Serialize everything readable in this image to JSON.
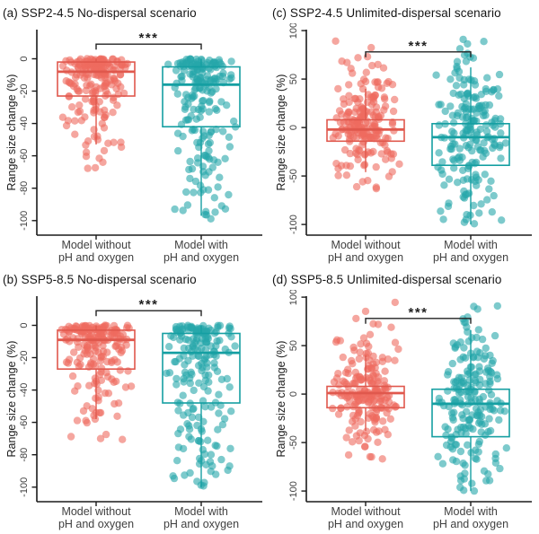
{
  "chart_data": [
    {
      "id": "a",
      "type": "boxplot-jitter",
      "title": "(a) SSP2-4.5 No-dispersal scenario",
      "ylabel": "Range size change (%)",
      "ydomain": [
        18,
        -109
      ],
      "yticks": [
        0,
        -20,
        -40,
        -60,
        -80,
        -100
      ],
      "legend": "none",
      "grid": "off",
      "significance": {
        "label": "***",
        "bracket_y": 9
      },
      "groups": [
        {
          "label_lines": [
            "Model without",
            "pH and oxygen"
          ],
          "point_color": "#ee6a5f",
          "box_color": "#e0584d",
          "box": {
            "q3": -2,
            "median": -8,
            "q1": -23,
            "whisker_high": 0,
            "whisker_low": -53
          },
          "n_points": 199,
          "value_bands": [
            [
              0,
              -4,
              58
            ],
            [
              -4,
              -10,
              44
            ],
            [
              -10,
              -18,
              30
            ],
            [
              -18,
              -28,
              26
            ],
            [
              -28,
              -40,
              20
            ],
            [
              -40,
              -53,
              12
            ],
            [
              -53,
              -62,
              6
            ],
            [
              -62,
              -68,
              3
            ]
          ]
        },
        {
          "label_lines": [
            "Model with",
            "pH and oxygen"
          ],
          "point_color": "#26a7aa",
          "box_color": "#159fa2",
          "box": {
            "q3": -5,
            "median": -16,
            "q1": -42,
            "whisker_high": 0,
            "whisker_low": -97
          },
          "n_points": 203,
          "value_bands": [
            [
              0,
              -5,
              48
            ],
            [
              -5,
              -14,
              38
            ],
            [
              -14,
              -25,
              28
            ],
            [
              -25,
              -38,
              24
            ],
            [
              -38,
              -52,
              20
            ],
            [
              -52,
              -65,
              16
            ],
            [
              -65,
              -80,
              12
            ],
            [
              -80,
              -92,
              9
            ],
            [
              -92,
              -100,
              8
            ]
          ]
        }
      ]
    },
    {
      "id": "c",
      "type": "boxplot-jitter",
      "title": "(c) SSP2-4.5 Unlimited-dispersal scenario",
      "ylabel": "Range size change (%)",
      "ydomain": [
        101,
        -111
      ],
      "yticks": [
        100,
        50,
        0,
        -50,
        -100
      ],
      "legend": "none",
      "grid": "off",
      "significance": {
        "label": "***",
        "bracket_y": 78
      },
      "groups": [
        {
          "label_lines": [
            "Model without",
            "pH and oxygen"
          ],
          "point_color": "#ee6a5f",
          "box_color": "#e0584d",
          "box": {
            "q3": 8,
            "median": -2,
            "q1": -14,
            "whisker_high": 40,
            "whisker_low": -46
          },
          "n_points": 200,
          "value_bands": [
            [
              93,
              70,
              4
            ],
            [
              70,
              50,
              8
            ],
            [
              50,
              35,
              14
            ],
            [
              35,
              20,
              24
            ],
            [
              20,
              8,
              32
            ],
            [
              8,
              -4,
              44
            ],
            [
              -4,
              -15,
              32
            ],
            [
              -15,
              -28,
              20
            ],
            [
              -28,
              -42,
              12
            ],
            [
              -42,
              -55,
              6
            ],
            [
              -55,
              -68,
              4
            ]
          ]
        },
        {
          "label_lines": [
            "Model with",
            "pH and oxygen"
          ],
          "point_color": "#26a7aa",
          "box_color": "#159fa2",
          "box": {
            "q3": 4,
            "median": -10,
            "q1": -39,
            "whisker_high": 62,
            "whisker_low": -100
          },
          "n_points": 200,
          "value_bands": [
            [
              97,
              75,
              5
            ],
            [
              75,
              55,
              9
            ],
            [
              55,
              38,
              16
            ],
            [
              38,
              22,
              22
            ],
            [
              22,
              8,
              26
            ],
            [
              8,
              -8,
              32
            ],
            [
              -8,
              -22,
              26
            ],
            [
              -22,
              -38,
              20
            ],
            [
              -38,
              -55,
              16
            ],
            [
              -55,
              -72,
              12
            ],
            [
              -72,
              -88,
              8
            ],
            [
              -88,
              -100,
              8
            ]
          ]
        }
      ]
    },
    {
      "id": "b",
      "type": "boxplot-jitter",
      "title": "(b) SSP5-8.5 No-dispersal scenario",
      "ylabel": "Range size change (%)",
      "ydomain": [
        18,
        -109
      ],
      "yticks": [
        0,
        -20,
        -40,
        -60,
        -80,
        -100
      ],
      "legend": "none",
      "grid": "off",
      "significance": {
        "label": "***",
        "bracket_y": 9
      },
      "groups": [
        {
          "label_lines": [
            "Model without",
            "pH and oxygen"
          ],
          "point_color": "#ee6a5f",
          "box_color": "#e0584d",
          "box": {
            "q3": -3,
            "median": -9,
            "q1": -27,
            "whisker_high": 0,
            "whisker_low": -58
          },
          "n_points": 196,
          "value_bands": [
            [
              0,
              -4,
              56
            ],
            [
              -4,
              -10,
              44
            ],
            [
              -10,
              -20,
              32
            ],
            [
              -20,
              -30,
              24
            ],
            [
              -30,
              -42,
              18
            ],
            [
              -42,
              -55,
              12
            ],
            [
              -55,
              -65,
              6
            ],
            [
              -65,
              -71,
              4
            ]
          ]
        },
        {
          "label_lines": [
            "Model with",
            "pH and oxygen"
          ],
          "point_color": "#26a7aa",
          "box_color": "#159fa2",
          "box": {
            "q3": -5,
            "median": -17,
            "q1": -48,
            "whisker_high": 0,
            "whisker_low": -100
          },
          "n_points": 200,
          "value_bands": [
            [
              0,
              -5,
              46
            ],
            [
              -5,
              -15,
              36
            ],
            [
              -15,
              -28,
              28
            ],
            [
              -28,
              -42,
              25
            ],
            [
              -42,
              -58,
              20
            ],
            [
              -58,
              -72,
              17
            ],
            [
              -72,
              -86,
              14
            ],
            [
              -86,
              -100,
              14
            ]
          ]
        }
      ]
    },
    {
      "id": "d",
      "type": "boxplot-jitter",
      "title": "(d) SSP5-8.5 Unlimited-dispersal scenario",
      "ylabel": "Range size change (%)",
      "ydomain": [
        101,
        -111
      ],
      "yticks": [
        100,
        50,
        0,
        -50,
        -100
      ],
      "legend": "none",
      "grid": "off",
      "significance": {
        "label": "***",
        "bracket_y": 78
      },
      "groups": [
        {
          "label_lines": [
            "Model without",
            "pH and oxygen"
          ],
          "point_color": "#ee6a5f",
          "box_color": "#e0584d",
          "box": {
            "q3": 8,
            "median": 1,
            "q1": -14,
            "whisker_high": 40,
            "whisker_low": -38
          },
          "n_points": 200,
          "value_bands": [
            [
              98,
              75,
              3
            ],
            [
              75,
              55,
              7
            ],
            [
              55,
              38,
              12
            ],
            [
              38,
              22,
              22
            ],
            [
              22,
              8,
              32
            ],
            [
              8,
              -4,
              46
            ],
            [
              -4,
              -16,
              34
            ],
            [
              -16,
              -30,
              22
            ],
            [
              -30,
              -45,
              12
            ],
            [
              -45,
              -58,
              6
            ],
            [
              -58,
              -68,
              4
            ]
          ]
        },
        {
          "label_lines": [
            "Model with",
            "pH and oxygen"
          ],
          "point_color": "#26a7aa",
          "box_color": "#159fa2",
          "box": {
            "q3": 5,
            "median": -10,
            "q1": -44,
            "whisker_high": 66,
            "whisker_low": -100
          },
          "n_points": 200,
          "value_bands": [
            [
              98,
              75,
              5
            ],
            [
              75,
              55,
              9
            ],
            [
              55,
              38,
              15
            ],
            [
              38,
              20,
              22
            ],
            [
              20,
              5,
              26
            ],
            [
              5,
              -12,
              34
            ],
            [
              -12,
              -28,
              28
            ],
            [
              -28,
              -45,
              22
            ],
            [
              -45,
              -62,
              16
            ],
            [
              -62,
              -80,
              12
            ],
            [
              -80,
              -100,
              11
            ]
          ]
        }
      ]
    }
  ],
  "style": {
    "axis_color": "#1a1a1a",
    "tick_label_color": "#404040",
    "bracket_color": "#222222",
    "point_opacity": 0.6,
    "jitter_seed": 42
  }
}
